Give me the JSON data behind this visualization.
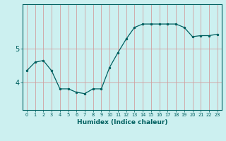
{
  "xlabel": "Humidex (Indice chaleur)",
  "ylabel": "",
  "x_values": [
    0,
    1,
    2,
    3,
    4,
    5,
    6,
    7,
    8,
    9,
    10,
    11,
    12,
    13,
    14,
    15,
    16,
    17,
    18,
    19,
    20,
    21,
    22,
    23
  ],
  "y_values": [
    4.35,
    4.6,
    4.65,
    4.35,
    3.82,
    3.82,
    3.72,
    3.68,
    3.82,
    3.82,
    4.45,
    4.88,
    5.28,
    5.62,
    5.72,
    5.72,
    5.72,
    5.72,
    5.72,
    5.62,
    5.35,
    5.38,
    5.38,
    5.42
  ],
  "line_color": "#006060",
  "marker_color": "#006060",
  "bg_color": "#ccf0f0",
  "grid_color": "#d0a0a0",
  "axis_color": "#006060",
  "tick_label_color": "#006060",
  "label_color": "#006060",
  "ylim_min": 3.2,
  "ylim_max": 6.3,
  "ytick_positions": [
    4,
    5
  ],
  "ytick_labels": [
    "4",
    "5"
  ]
}
